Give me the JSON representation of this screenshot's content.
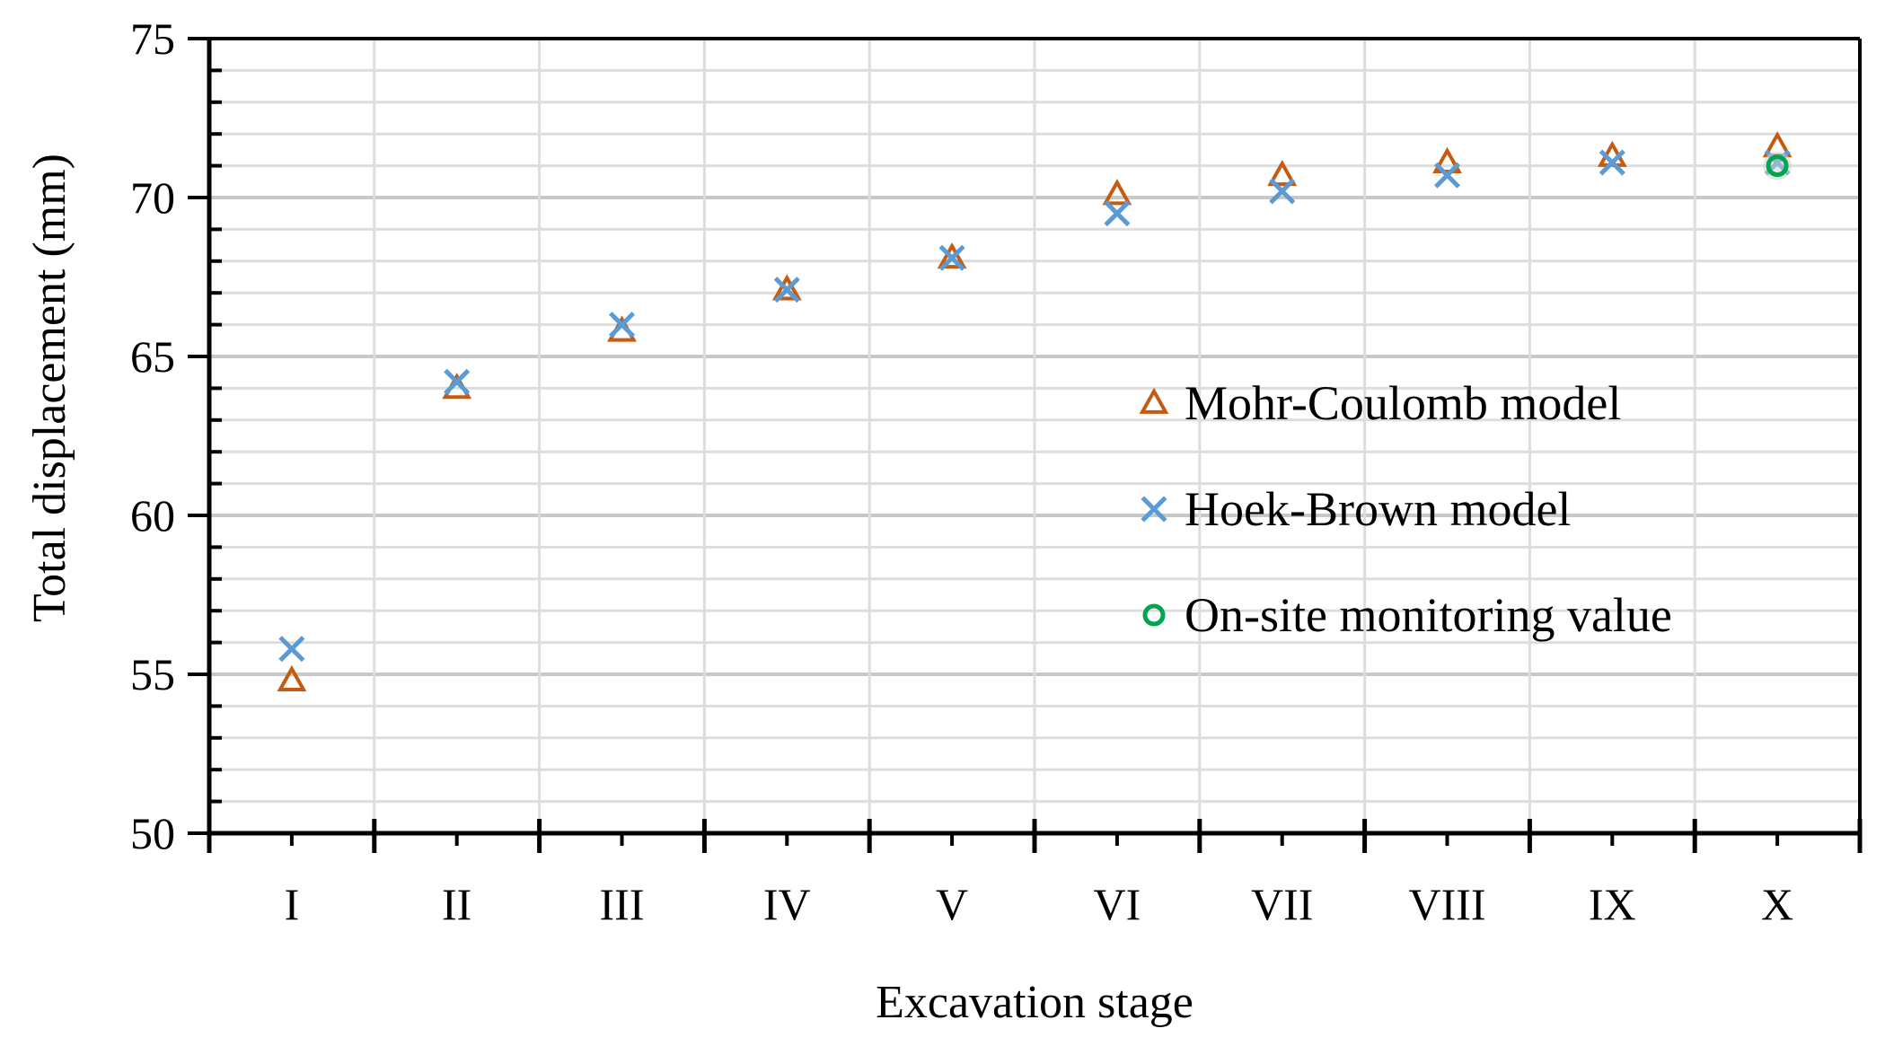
{
  "chart_data": {
    "type": "scatter",
    "title": "",
    "xlabel": "Excavation stage",
    "ylabel": "Total displacement (mm)",
    "categories": [
      "I",
      "II",
      "III",
      "IV",
      "V",
      "VI",
      "VII",
      "VIII",
      "IX",
      "X"
    ],
    "ylim": [
      50,
      75
    ],
    "yticks": [
      "50",
      "55",
      "60",
      "65",
      "70",
      "75"
    ],
    "grid": true,
    "legend_position": "right",
    "series": [
      {
        "name": "Mohr-Coulomb model",
        "marker": "triangle",
        "color": "#C55A11",
        "values": [
          54.8,
          64.0,
          65.8,
          67.1,
          68.1,
          70.1,
          70.7,
          71.1,
          71.3,
          71.6
        ]
      },
      {
        "name": "Hoek-Brown model",
        "marker": "x",
        "color": "#5B9BD5",
        "values": [
          55.8,
          64.2,
          66.0,
          67.1,
          68.1,
          69.5,
          70.2,
          70.7,
          71.1,
          71.1
        ]
      },
      {
        "name": "On-site monitoring value",
        "marker": "circle",
        "color": "#00A550",
        "x_categories": [
          "X"
        ],
        "values": [
          71.0
        ]
      }
    ]
  }
}
